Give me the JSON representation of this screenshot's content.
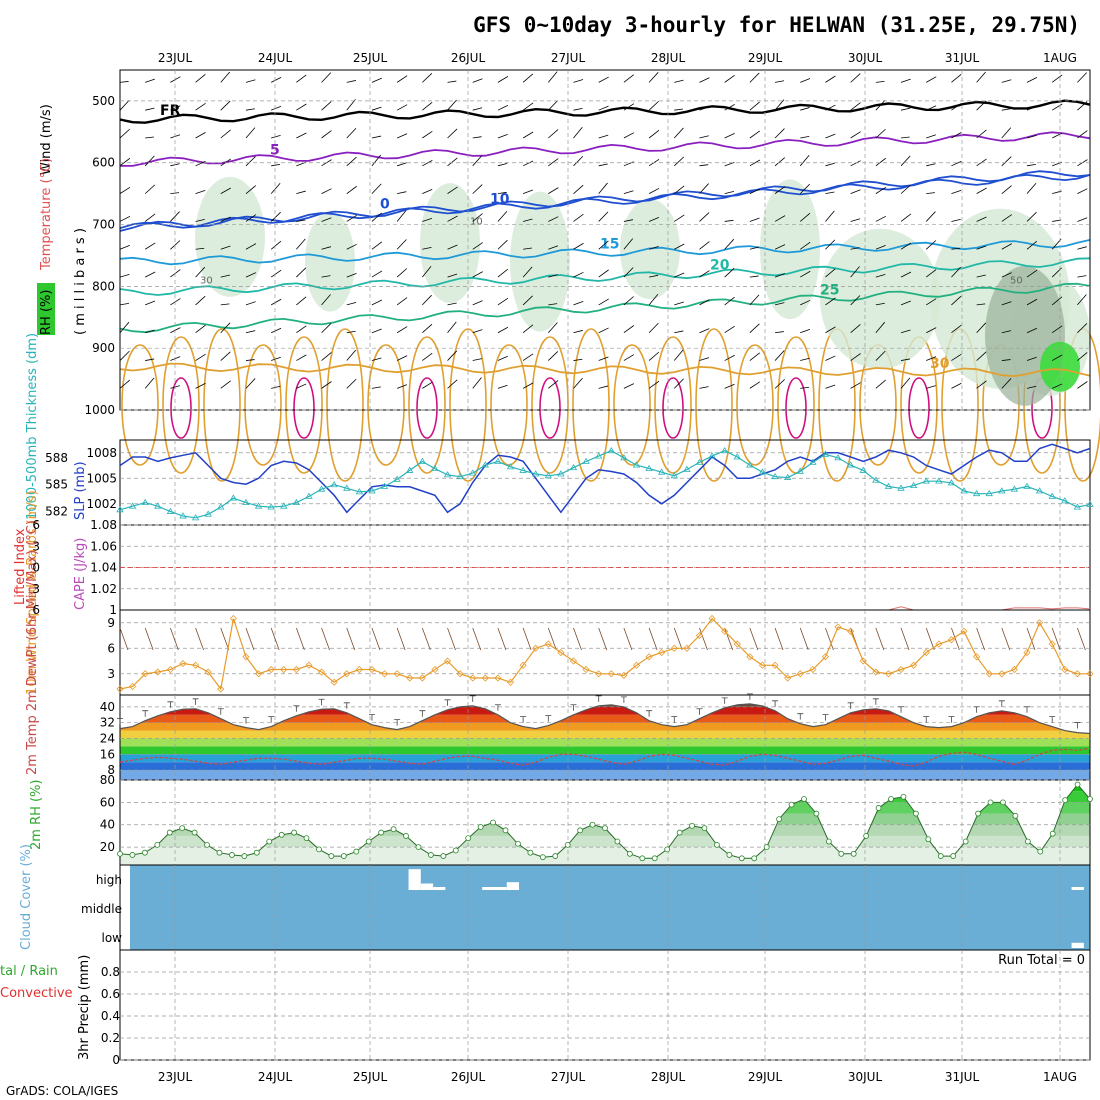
{
  "title": "GFS 0~10day 3-hourly for HELWAN (31.25E, 29.75N)",
  "credit": "GrADS: COLA/IGES",
  "run_total": "Run Total = 0",
  "date_labels": [
    "23JUL",
    "24JUL",
    "25JUL",
    "26JUL",
    "27JUL",
    "28JUL",
    "29JUL",
    "30JUL",
    "31JUL",
    "1AUG"
  ],
  "colors": {
    "dewpoint": "#c94a4a",
    "slp": "#2240c8",
    "thickness": "#27b3b8",
    "wind_speed": "#e89a2a",
    "rh_green": "#2ea82e",
    "cloud_bg": "#6aaed6",
    "cape": "#b84ab8",
    "lifted_index": "#e03030"
  },
  "chart_data": [
    {
      "panel": "upper_air",
      "type": "heatmap",
      "ylabel_wind": "Wind (m/s)",
      "ylabel_temp": "Temperature (°C)",
      "ylabel_rh": "RH (%)",
      "ylabel_units": "( m i l l i b a r s )",
      "yticks": [
        "500",
        "600",
        "700",
        "800",
        "900",
        "1000"
      ],
      "ylim": [
        1000,
        450
      ],
      "isotherms": [
        {
          "label": "FR",
          "value": 0,
          "p_start": 530,
          "p_end": 505
        },
        {
          "label": "5",
          "value": 5,
          "p_start": 600,
          "p_end": 555
        },
        {
          "label": "0",
          "value": 0,
          "p_start": 705,
          "p_end": 615
        },
        {
          "label": "10",
          "value": 10,
          "p_start": 705,
          "p_end": 620
        },
        {
          "label": "15",
          "value": 15,
          "p_start": 760,
          "p_end": 730
        },
        {
          "label": "20",
          "value": 20,
          "p_start": 810,
          "p_end": 760
        },
        {
          "label": "25",
          "value": 25,
          "p_start": 870,
          "p_end": 800
        },
        {
          "label": "30",
          "value": 30,
          "p_start": 930,
          "p_end": 940
        }
      ],
      "rh_labels": [
        "30",
        "10",
        "50"
      ]
    },
    {
      "panel": "slp_thickness",
      "type": "line",
      "ylabel_left": "1000-500mb Thickness (dm)",
      "ylabel_right": "SLP (mb)",
      "yticks_left": [
        "588",
        "585",
        "582"
      ],
      "yticks_right": [
        "1008",
        "1005",
        "1002"
      ],
      "ylim_slp": [
        999.5,
        1009.5
      ],
      "ylim_thick": [
        580.5,
        590
      ],
      "series": [
        {
          "name": "SLP (mb)",
          "values": [
            1006.5,
            1007.5,
            1007.5,
            1007.0,
            1007.4,
            1007.7,
            1008.0,
            1006.5,
            1005.0,
            1004.5,
            1004.3,
            1005.0,
            1006.5,
            1007.0,
            1006.8,
            1006.0,
            1004.5,
            1003.0,
            1001.0,
            1002.5,
            1004.0,
            1004.2,
            1004.0,
            1004.0,
            1003.5,
            1003.0,
            1001.0,
            1002.0,
            1004.5,
            1006.5,
            1007.7,
            1007.5,
            1007.0,
            1005.0,
            1003.0,
            1001.0,
            1003.0,
            1005.0,
            1006.0,
            1005.8,
            1005.5,
            1004.5,
            1003.0,
            1002.0,
            1003.0,
            1004.5,
            1006.0,
            1007.5,
            1006.5,
            1005.0,
            1005.0,
            1005.5,
            1006.0,
            1007.0,
            1007.5,
            1007.0,
            1008.0,
            1008.0,
            1007.5,
            1007.0,
            1007.5,
            1008.3,
            1008.0,
            1007.5,
            1006.5,
            1006.0,
            1005.5,
            1006.5,
            1007.5,
            1008.3,
            1008.0,
            1007.0,
            1007.0,
            1008.5,
            1009.0,
            1008.5,
            1008.0,
            1008.5
          ]
        },
        {
          "name": "1000-500mb Thickness (dm)",
          "values": [
            582.2,
            582.6,
            583.0,
            582.6,
            582.0,
            581.5,
            581.3,
            581.7,
            582.5,
            583.5,
            583.0,
            582.6,
            582.5,
            582.6,
            583.0,
            583.7,
            584.5,
            585.0,
            584.6,
            584.2,
            584.3,
            584.8,
            585.6,
            586.6,
            587.6,
            586.8,
            586.1,
            585.9,
            586.3,
            587.2,
            587.6,
            587.0,
            586.6,
            586.2,
            586.0,
            586.2,
            586.9,
            587.6,
            588.2,
            588.8,
            588.0,
            587.2,
            586.8,
            586.4,
            586.0,
            586.7,
            587.5,
            588.2,
            588.8,
            588.1,
            587.2,
            586.4,
            585.9,
            585.8,
            586.5,
            587.5,
            588.4,
            588.0,
            587.2,
            586.6,
            585.5,
            584.8,
            584.6,
            584.9,
            585.4,
            585.4,
            585.2,
            584.3,
            584.0,
            584.0,
            584.3,
            584.5,
            584.8,
            584.3,
            583.7,
            583.2,
            582.5,
            582.8
          ]
        }
      ]
    },
    {
      "panel": "stability",
      "type": "line",
      "ylabel_left": "Lifted Index",
      "ylabel_right": "CAPE (J/kg)",
      "yticks_left": [
        "6",
        "3",
        "0",
        "3",
        "6"
      ],
      "yticks_right": [
        "1.08",
        "1.06",
        "1.04",
        "1.02",
        "1"
      ],
      "ylim_cape": [
        1,
        1.08
      ],
      "series": [
        {
          "name": "CAPE (J/kg)",
          "values": [
            1,
            1,
            1,
            1,
            1,
            1,
            1,
            1,
            1,
            1,
            1,
            1,
            1,
            1,
            1,
            1,
            1,
            1,
            1,
            1,
            1,
            1,
            1,
            1,
            1,
            1,
            1,
            1,
            1,
            1,
            1,
            1,
            1,
            1,
            1,
            1,
            1,
            1,
            1,
            1,
            1,
            1,
            1,
            1,
            1,
            1,
            1,
            1,
            1,
            1,
            1,
            1,
            1,
            1,
            1,
            1,
            1,
            1,
            1,
            1,
            1,
            1,
            1.003,
            1,
            1,
            1,
            1,
            1,
            1,
            1,
            1,
            1.002,
            1.002,
            1.002,
            1.001,
            1.002,
            1.002,
            1.001
          ]
        }
      ]
    },
    {
      "panel": "wind_10m",
      "type": "line",
      "ylabel": "10m Wind Speed & Barbs (m/s)",
      "yticks": [
        "9",
        "6",
        "3"
      ],
      "ylim": [
        0.5,
        10.5
      ],
      "series": [
        {
          "name": "10m Wind Speed",
          "values": [
            1.2,
            1.5,
            3.0,
            3.2,
            3.5,
            4.2,
            4.0,
            3.2,
            1.2,
            9.5,
            5.0,
            3.0,
            3.5,
            3.5,
            3.5,
            4.0,
            3.2,
            2.0,
            3.0,
            3.5,
            3.5,
            3.0,
            3.0,
            2.5,
            2.5,
            3.5,
            4.5,
            3.0,
            2.5,
            2.5,
            2.5,
            2.0,
            4.0,
            6.0,
            6.5,
            5.5,
            4.5,
            3.5,
            3.0,
            3.0,
            2.8,
            4.0,
            5.0,
            5.5,
            6.0,
            6.0,
            7.5,
            9.5,
            8.0,
            6.5,
            5.0,
            4.0,
            4.0,
            2.5,
            3.0,
            3.5,
            5.0,
            8.5,
            8.0,
            4.5,
            3.2,
            3.0,
            3.5,
            4.0,
            5.5,
            6.5,
            7.0,
            8.0,
            5.0,
            3.0,
            3.0,
            3.5,
            5.5,
            9.0,
            6.5,
            3.5,
            3.0,
            3.0
          ]
        }
      ]
    },
    {
      "panel": "temperature",
      "type": "area",
      "ylabel": "2m Temp 2m DewPt (6hr Min/Max) (°C)",
      "yticks": [
        "40",
        "32",
        "24",
        "16",
        "8"
      ],
      "ylim": [
        3,
        46
      ],
      "series": [
        {
          "name": "2m Temp",
          "values": [
            29,
            30,
            33,
            35.5,
            37.5,
            38.8,
            39,
            37,
            34,
            31,
            29.5,
            28.5,
            30,
            33,
            35.5,
            37.5,
            38.8,
            39,
            37,
            34,
            31,
            29.5,
            28.5,
            30,
            33,
            36,
            38.5,
            40,
            40.5,
            39,
            36,
            32,
            30,
            29,
            30.5,
            33,
            36,
            38.5,
            40.5,
            41,
            40,
            37,
            33,
            31,
            30,
            31,
            34,
            37,
            39.5,
            41,
            41.5,
            40.5,
            38,
            34,
            31.5,
            30,
            31,
            34,
            37,
            38.5,
            39,
            38,
            35,
            32,
            30,
            29.5,
            30,
            32,
            35,
            37,
            38,
            37,
            35,
            32,
            30,
            28,
            27,
            26.5
          ]
        },
        {
          "name": "2m DewPt",
          "values": [
            12,
            13,
            14,
            14.5,
            14,
            13.5,
            12.5,
            11.5,
            11,
            12,
            13,
            14,
            14,
            13.5,
            12.5,
            11.5,
            11,
            12,
            13,
            14,
            14,
            13.5,
            12.5,
            11.5,
            11,
            12.5,
            14,
            15,
            15,
            14,
            13,
            11.5,
            10.5,
            12,
            14.5,
            16,
            16,
            15,
            13.5,
            12,
            11,
            12.5,
            15,
            16,
            15.5,
            14,
            12.5,
            11,
            10.5,
            12.5,
            15,
            16,
            15.5,
            14,
            12.5,
            11,
            11.5,
            13,
            15,
            15.5,
            14,
            12.5,
            11,
            10,
            12,
            15,
            16.5,
            17,
            16,
            14,
            12.5,
            11,
            13,
            16,
            18,
            18.5,
            18,
            19
          ]
        }
      ]
    },
    {
      "panel": "rh_2m",
      "type": "area",
      "ylabel": "2m RH (%)",
      "yticks": [
        "80",
        "60",
        "40",
        "20"
      ],
      "ylim": [
        4,
        80
      ],
      "series": [
        {
          "name": "2m RH",
          "values": [
            14,
            13,
            15,
            22,
            33,
            37,
            33,
            22,
            15,
            13,
            12,
            15,
            25,
            31,
            33,
            28,
            18,
            12,
            12,
            16,
            25,
            33,
            36,
            30,
            20,
            13,
            12,
            17,
            28,
            38,
            42,
            35,
            23,
            15,
            11,
            12,
            22,
            35,
            40,
            37,
            25,
            14,
            10,
            10,
            18,
            33,
            39,
            37,
            22,
            13,
            10,
            10,
            20,
            45,
            58,
            63,
            50,
            25,
            14,
            14,
            30,
            55,
            63,
            65,
            50,
            27,
            12,
            12,
            25,
            50,
            60,
            60,
            48,
            25,
            16,
            32,
            62,
            76,
            63
          ]
        }
      ]
    },
    {
      "panel": "cloud_cover",
      "type": "bar",
      "ylabel": "Cloud Cover (%)",
      "yticks": [
        "high",
        "middle",
        "low"
      ],
      "series": [
        {
          "name": "high",
          "values": [
            0,
            0,
            0,
            0,
            0,
            0,
            0,
            0,
            0,
            0,
            0,
            0,
            0,
            0,
            0,
            0,
            0,
            0,
            0,
            0,
            0,
            0,
            0,
            0,
            80,
            25,
            10,
            0,
            0,
            0,
            3,
            10,
            30,
            0,
            0,
            0,
            0,
            0,
            0,
            0,
            0,
            0,
            0,
            0,
            0,
            0,
            0,
            0,
            0,
            0,
            0,
            0,
            0,
            0,
            0,
            0,
            0,
            0,
            0,
            0,
            0,
            0,
            0,
            0,
            0,
            0,
            0,
            0,
            0,
            0,
            0,
            0,
            0,
            0,
            0,
            0,
            0,
            0,
            10,
            0
          ]
        },
        {
          "name": "middle",
          "values": [
            0,
            0,
            0,
            0,
            0,
            0,
            0,
            0,
            0,
            0,
            0,
            0,
            0,
            0,
            0,
            0,
            0,
            0,
            0,
            0,
            0,
            0,
            0,
            0,
            0,
            0,
            0,
            0,
            0,
            0,
            0,
            0,
            0,
            0,
            0,
            0,
            0,
            0,
            0,
            0,
            0,
            0,
            0,
            0,
            0,
            0,
            0,
            0,
            0,
            0,
            0,
            0,
            0,
            0,
            0,
            0,
            0,
            0,
            0,
            0,
            0,
            0,
            0,
            0,
            0,
            0,
            0,
            0,
            0,
            0,
            0,
            0,
            0,
            0,
            0,
            0,
            0,
            0,
            0
          ]
        },
        {
          "name": "low",
          "values": [
            0,
            0,
            0,
            0,
            0,
            0,
            0,
            0,
            0,
            0,
            0,
            0,
            0,
            0,
            0,
            0,
            0,
            0,
            0,
            0,
            0,
            0,
            0,
            0,
            0,
            0,
            0,
            0,
            0,
            0,
            0,
            0,
            0,
            0,
            0,
            0,
            0,
            0,
            0,
            0,
            0,
            0,
            0,
            0,
            0,
            0,
            0,
            0,
            0,
            0,
            0,
            0,
            0,
            0,
            0,
            0,
            0,
            0,
            0,
            0,
            0,
            0,
            0,
            0,
            0,
            0,
            0,
            0,
            0,
            0,
            0,
            0,
            0,
            0,
            0,
            0,
            0,
            0,
            20,
            0
          ]
        }
      ]
    },
    {
      "panel": "precip",
      "type": "bar",
      "ylabel": "3hr Precip (mm)",
      "ylabel_left_a": "tal / Rain",
      "ylabel_left_b": "Convective",
      "yticks": [
        "0.8",
        "0.6",
        "0.4",
        "0.2",
        "0"
      ],
      "ylim": [
        0,
        1
      ],
      "series": [
        {
          "name": "3hr Precip",
          "values": [
            0,
            0,
            0,
            0,
            0,
            0,
            0,
            0,
            0,
            0,
            0,
            0,
            0,
            0,
            0,
            0,
            0,
            0,
            0,
            0,
            0,
            0,
            0,
            0,
            0,
            0,
            0,
            0,
            0,
            0,
            0,
            0,
            0,
            0,
            0,
            0,
            0,
            0,
            0,
            0,
            0,
            0,
            0,
            0,
            0,
            0,
            0,
            0,
            0,
            0,
            0,
            0,
            0,
            0,
            0,
            0,
            0,
            0,
            0,
            0,
            0,
            0,
            0,
            0,
            0,
            0,
            0,
            0,
            0,
            0,
            0,
            0,
            0,
            0,
            0,
            0,
            0,
            0
          ]
        }
      ]
    }
  ]
}
